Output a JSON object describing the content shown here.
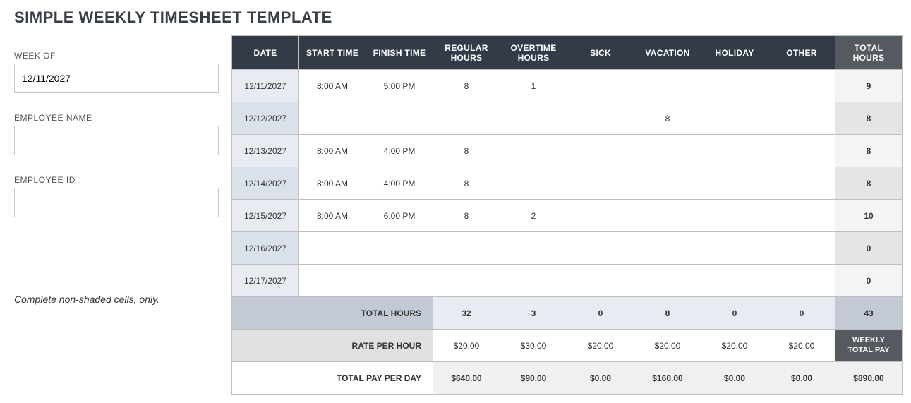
{
  "title": "SIMPLE WEEKLY TIMESHEET TEMPLATE",
  "side": {
    "week_of_label": "WEEK OF",
    "week_of_value": "12/11/2027",
    "employee_name_label": "EMPLOYEE NAME",
    "employee_name_value": "",
    "employee_id_label": "EMPLOYEE ID",
    "employee_id_value": "",
    "note": "Complete non-shaded cells, only."
  },
  "headers": {
    "date": "DATE",
    "start": "START TIME",
    "finish": "FINISH TIME",
    "regular": "REGULAR HOURS",
    "overtime": "OVERTIME HOURS",
    "sick": "SICK",
    "vacation": "VACATION",
    "holiday": "HOLIDAY",
    "other": "OTHER",
    "total": "TOTAL HOURS"
  },
  "rows": [
    {
      "date": "12/11/2027",
      "start": "8:00 AM",
      "finish": "5:00 PM",
      "regular": "8",
      "overtime": "1",
      "sick": "",
      "vacation": "",
      "holiday": "",
      "other": "",
      "total": "9"
    },
    {
      "date": "12/12/2027",
      "start": "",
      "finish": "",
      "regular": "",
      "overtime": "",
      "sick": "",
      "vacation": "8",
      "holiday": "",
      "other": "",
      "total": "8"
    },
    {
      "date": "12/13/2027",
      "start": "8:00 AM",
      "finish": "4:00 PM",
      "regular": "8",
      "overtime": "",
      "sick": "",
      "vacation": "",
      "holiday": "",
      "other": "",
      "total": "8"
    },
    {
      "date": "12/14/2027",
      "start": "8:00 AM",
      "finish": "4:00 PM",
      "regular": "8",
      "overtime": "",
      "sick": "",
      "vacation": "",
      "holiday": "",
      "other": "",
      "total": "8"
    },
    {
      "date": "12/15/2027",
      "start": "8:00 AM",
      "finish": "6:00 PM",
      "regular": "8",
      "overtime": "2",
      "sick": "",
      "vacation": "",
      "holiday": "",
      "other": "",
      "total": "10"
    },
    {
      "date": "12/16/2027",
      "start": "",
      "finish": "",
      "regular": "",
      "overtime": "",
      "sick": "",
      "vacation": "",
      "holiday": "",
      "other": "",
      "total": "0"
    },
    {
      "date": "12/17/2027",
      "start": "",
      "finish": "",
      "regular": "",
      "overtime": "",
      "sick": "",
      "vacation": "",
      "holiday": "",
      "other": "",
      "total": "0"
    }
  ],
  "summary": {
    "total_hours_label": "TOTAL HOURS",
    "rate_label": "RATE PER HOUR",
    "total_pay_label": "TOTAL PAY PER DAY",
    "weekly_total_pay_label": "WEEKLY TOTAL PAY",
    "hours": {
      "regular": "32",
      "overtime": "3",
      "sick": "0",
      "vacation": "8",
      "holiday": "0",
      "other": "0",
      "grand": "43"
    },
    "rate": {
      "regular": "$20.00",
      "overtime": "$30.00",
      "sick": "$20.00",
      "vacation": "$20.00",
      "holiday": "$20.00",
      "other": "$20.00"
    },
    "pay": {
      "regular": "$640.00",
      "overtime": "$90.00",
      "sick": "$0.00",
      "vacation": "$160.00",
      "holiday": "$0.00",
      "other": "$0.00",
      "grand": "$890.00"
    }
  },
  "style": {
    "header_bg": "#333b49",
    "header_total_bg": "#555a61",
    "date_col_bg": "#e8ecf2",
    "date_col_bg_alt": "#dbe1ea",
    "total_col_bg_a": "#f4f4f4",
    "total_col_bg_b": "#e5e5e5",
    "summary_a_bg": "#c3cad6",
    "summary_b_bg": "#e1e1e1",
    "border": "#bfbfbf"
  }
}
